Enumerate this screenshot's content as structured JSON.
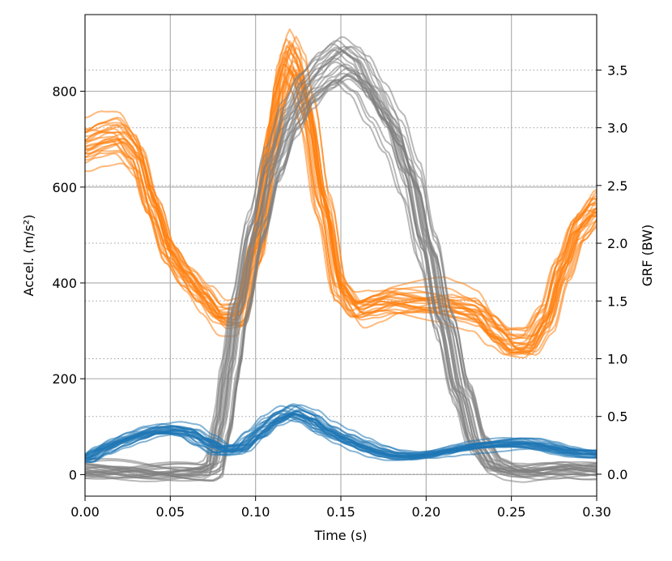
{
  "chart_data": {
    "type": "line",
    "xlabel": "Time (s)",
    "ylabel_left": "Accel. (m/s²)",
    "ylabel_right": "GRF (BW)",
    "xlim": [
      0.0,
      0.3
    ],
    "ylim_left": [
      -45,
      960
    ],
    "ylim_right": [
      -0.19,
      3.98
    ],
    "x_ticks": [
      0.0,
      0.05,
      0.1,
      0.15,
      0.2,
      0.25,
      0.3
    ],
    "x_tick_labels": [
      "0.00",
      "0.05",
      "0.10",
      "0.15",
      "0.20",
      "0.25",
      "0.30"
    ],
    "y_left_ticks": [
      0,
      200,
      400,
      600,
      800
    ],
    "y_left_tick_labels": [
      "0",
      "200",
      "400",
      "600",
      "800"
    ],
    "y_right_ticks": [
      0.0,
      0.5,
      1.0,
      1.5,
      2.0,
      2.5,
      3.0,
      3.5
    ],
    "y_right_tick_labels": [
      "0.0",
      "0.5",
      "1.0",
      "1.5",
      "2.0",
      "2.5",
      "3.0",
      "3.5"
    ],
    "grid": true,
    "right_grid_dotted": true,
    "trial_count_per_series": 25,
    "series": [
      {
        "name": "",
        "axis": "left",
        "color": "#ff7f0e",
        "x": [
          0.0,
          0.01,
          0.02,
          0.03,
          0.04,
          0.05,
          0.06,
          0.07,
          0.08,
          0.09,
          0.1,
          0.11,
          0.115,
          0.12,
          0.125,
          0.13,
          0.14,
          0.15,
          0.16,
          0.17,
          0.18,
          0.19,
          0.2,
          0.21,
          0.22,
          0.23,
          0.24,
          0.25,
          0.26,
          0.27,
          0.28,
          0.29,
          0.3
        ],
        "values": [
          690,
          705,
          710,
          670,
          560,
          460,
          410,
          370,
          330,
          330,
          470,
          700,
          820,
          870,
          840,
          760,
          560,
          380,
          340,
          350,
          360,
          360,
          360,
          360,
          350,
          340,
          300,
          270,
          270,
          320,
          430,
          520,
          560
        ]
      },
      {
        "name": "",
        "axis": "left",
        "color": "#1f77b4",
        "x": [
          0.0,
          0.01,
          0.02,
          0.03,
          0.04,
          0.05,
          0.06,
          0.07,
          0.08,
          0.09,
          0.1,
          0.11,
          0.12,
          0.13,
          0.14,
          0.15,
          0.16,
          0.17,
          0.18,
          0.19,
          0.2,
          0.21,
          0.22,
          0.23,
          0.24,
          0.25,
          0.26,
          0.27,
          0.28,
          0.29,
          0.3
        ],
        "values": [
          35,
          55,
          70,
          82,
          92,
          95,
          90,
          70,
          52,
          55,
          85,
          115,
          132,
          120,
          95,
          78,
          63,
          50,
          42,
          40,
          43,
          50,
          57,
          62,
          65,
          67,
          66,
          60,
          52,
          47,
          45
        ]
      },
      {
        "name": "",
        "axis": "right",
        "color": "#7f7f7f",
        "x": [
          0.0,
          0.02,
          0.04,
          0.06,
          0.07,
          0.075,
          0.08,
          0.085,
          0.09,
          0.1,
          0.11,
          0.12,
          0.13,
          0.14,
          0.15,
          0.16,
          0.17,
          0.18,
          0.19,
          0.2,
          0.21,
          0.22,
          0.23,
          0.24,
          0.25,
          0.26,
          0.27,
          0.28,
          0.29,
          0.3
        ],
        "values": [
          0.03,
          0.03,
          0.02,
          0.02,
          0.02,
          0.05,
          0.4,
          0.9,
          1.4,
          2.1,
          2.65,
          3.05,
          3.3,
          3.45,
          3.55,
          3.45,
          3.2,
          2.95,
          2.55,
          1.95,
          1.3,
          0.7,
          0.25,
          0.07,
          0.03,
          0.02,
          0.03,
          0.04,
          0.03,
          0.03
        ]
      }
    ]
  }
}
